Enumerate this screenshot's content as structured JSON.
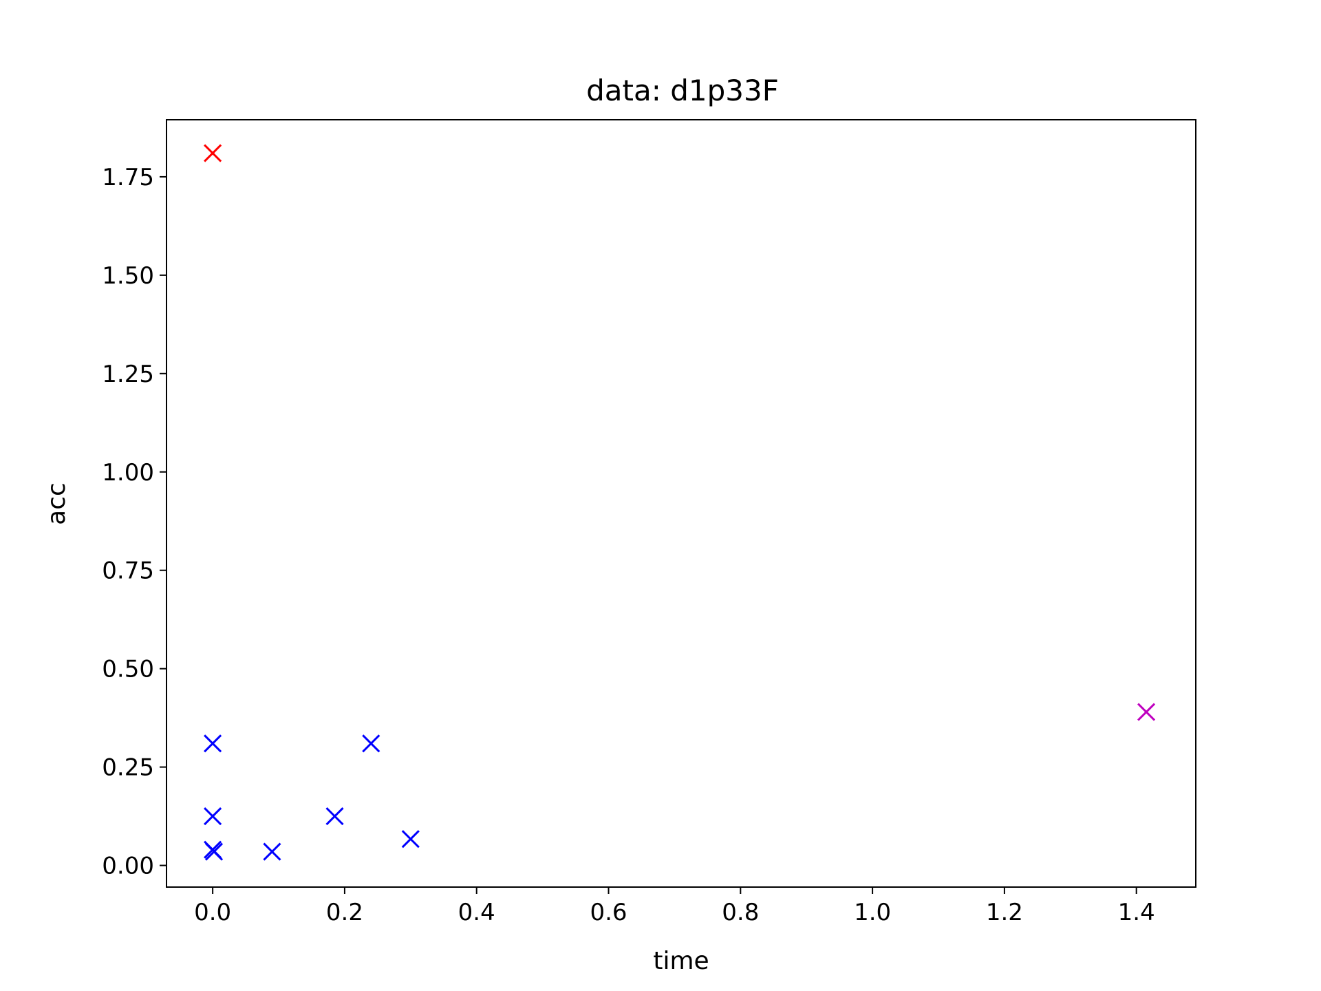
{
  "chart_data": {
    "type": "scatter",
    "title": "data: d1p33F",
    "xlabel": "time",
    "ylabel": "acc",
    "xlim": [
      -0.07,
      1.49
    ],
    "ylim": [
      -0.055,
      1.895
    ],
    "xticks": [
      0.0,
      0.2,
      0.4,
      0.6,
      0.8,
      1.0,
      1.2,
      1.4
    ],
    "xtick_labels": [
      "0.0",
      "0.2",
      "0.4",
      "0.6",
      "0.8",
      "1.0",
      "1.2",
      "1.4"
    ],
    "yticks": [
      0.0,
      0.25,
      0.5,
      0.75,
      1.0,
      1.25,
      1.5,
      1.75
    ],
    "ytick_labels": [
      "0.00",
      "0.25",
      "0.50",
      "0.75",
      "1.00",
      "1.25",
      "1.50",
      "1.75"
    ],
    "grid": false,
    "marker": "x",
    "series": [
      {
        "name": "red",
        "color": "#ff0000",
        "points": [
          [
            0.0,
            1.81
          ]
        ]
      },
      {
        "name": "blue",
        "color": "#0000ff",
        "points": [
          [
            0.0,
            0.31
          ],
          [
            0.0,
            0.125
          ],
          [
            0.0,
            0.04
          ],
          [
            0.002,
            0.035
          ],
          [
            0.09,
            0.035
          ],
          [
            0.185,
            0.125
          ],
          [
            0.24,
            0.31
          ],
          [
            0.3,
            0.067
          ]
        ]
      },
      {
        "name": "magenta",
        "color": "#bf00bf",
        "points": [
          [
            1.415,
            0.39
          ]
        ]
      }
    ]
  }
}
